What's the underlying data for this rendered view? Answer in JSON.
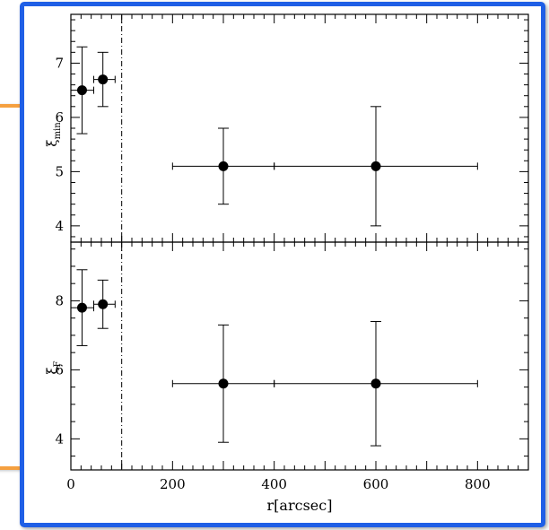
{
  "chart_data": [
    {
      "type": "scatter",
      "panel": "top",
      "ylabel": "ξ_min",
      "ylabel_main": "ξ",
      "ylabel_sub": "min",
      "xlim": [
        0,
        900
      ],
      "ylim": [
        3.7,
        7.9
      ],
      "yticks": [
        4,
        5,
        6,
        7
      ],
      "grid": false,
      "divider_x": 100,
      "points": [
        {
          "x": 22,
          "y": 6.5,
          "xerr": [
            0,
            45
          ],
          "yerr": [
            5.7,
            7.3
          ]
        },
        {
          "x": 63,
          "y": 6.7,
          "xerr": [
            45,
            87
          ],
          "yerr": [
            6.2,
            7.2
          ]
        },
        {
          "x": 300,
          "y": 5.1,
          "xerr": [
            200,
            400
          ],
          "yerr": [
            4.4,
            5.8
          ]
        },
        {
          "x": 600,
          "y": 5.1,
          "xerr": [
            400,
            800
          ],
          "yerr": [
            4.0,
            6.2
          ]
        }
      ]
    },
    {
      "type": "scatter",
      "panel": "bottom",
      "ylabel": "ξ_F",
      "ylabel_main": "ξ",
      "ylabel_sub": "F",
      "xlabel": "r[arcsec]",
      "xlim": [
        0,
        900
      ],
      "ylim": [
        3.1,
        9.7
      ],
      "yticks": [
        4,
        6,
        8
      ],
      "xticks": [
        0,
        200,
        400,
        600,
        800
      ],
      "grid": false,
      "divider_x": 100,
      "points": [
        {
          "x": 22,
          "y": 7.8,
          "xerr": [
            0,
            45
          ],
          "yerr": [
            6.7,
            8.9
          ]
        },
        {
          "x": 63,
          "y": 7.9,
          "xerr": [
            45,
            87
          ],
          "yerr": [
            7.2,
            8.6
          ]
        },
        {
          "x": 300,
          "y": 5.6,
          "xerr": [
            200,
            400
          ],
          "yerr": [
            3.9,
            7.3
          ]
        },
        {
          "x": 600,
          "y": 5.6,
          "xerr": [
            400,
            800
          ],
          "yerr": [
            3.8,
            7.4
          ]
        }
      ]
    }
  ],
  "colors": {
    "frame_blue": "#1f5fe6",
    "frame_orange": "#f5a040",
    "ink": "#000000"
  }
}
